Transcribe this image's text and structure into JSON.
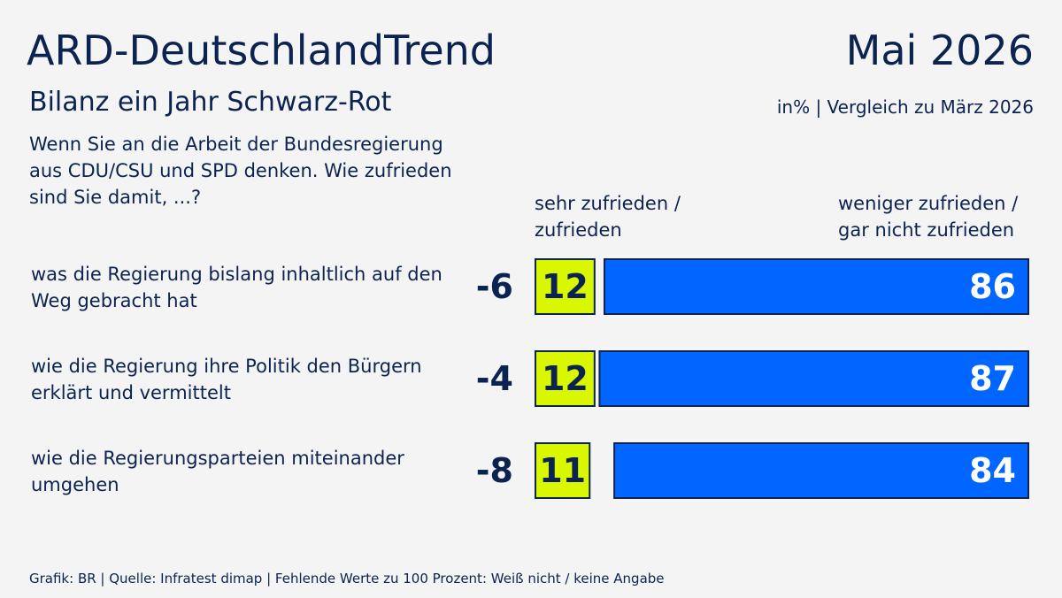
{
  "chart_data": {
    "type": "bar",
    "title": "ARD-DeutschlandTrend",
    "date": "Mai 2026",
    "subtitle": "Bilanz ein Jahr Schwarz-Rot",
    "note": "in% | Vergleich zu März 2026",
    "question": "Wenn Sie an die Arbeit der Bundesregierung aus CDU/CSU und SPD denken. Wie zufrieden sind Sie damit, ...?",
    "categories": [
      "was die Regierung bislang inhaltlich auf den Weg gebracht hat",
      "wie die Regierung ihre Politik den Bürgern erklärt und vermittelt",
      "wie die Regierungsparteien miteinander umgehen"
    ],
    "changes": [
      -6,
      -4,
      -8
    ],
    "series": [
      {
        "name": "sehr zufrieden / zufrieden",
        "color": "#d9f700",
        "values": [
          12,
          12,
          11
        ]
      },
      {
        "name": "weniger zufrieden / gar nicht zufrieden",
        "color": "#0066ff",
        "values": [
          86,
          87,
          84
        ]
      }
    ],
    "source": "Grafik: BR | Quelle: Infratest dimap | Fehlende Werte zu 100 Prozent: Weiß nicht / keine Angabe"
  }
}
